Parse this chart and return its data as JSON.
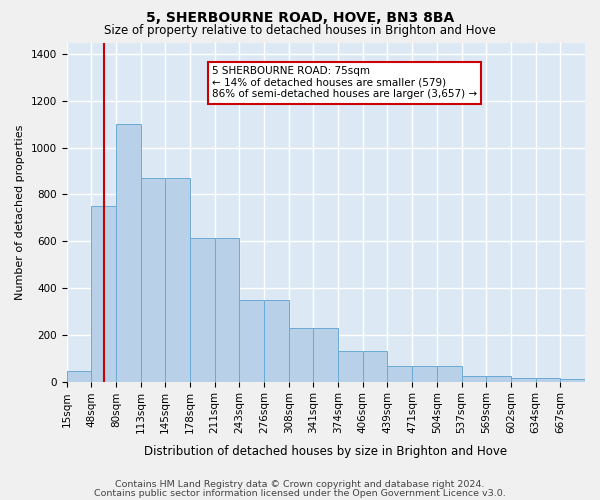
{
  "title": "5, SHERBOURNE ROAD, HOVE, BN3 8BA",
  "subtitle": "Size of property relative to detached houses in Brighton and Hove",
  "xlabel": "Distribution of detached houses by size in Brighton and Hove",
  "ylabel": "Number of detached properties",
  "footnote1": "Contains HM Land Registry data © Crown copyright and database right 2024.",
  "footnote2": "Contains public sector information licensed under the Open Government Licence v3.0.",
  "bar_labels": [
    "15sqm",
    "48sqm",
    "80sqm",
    "113sqm",
    "145sqm",
    "178sqm",
    "211sqm",
    "243sqm",
    "276sqm",
    "308sqm",
    "341sqm",
    "374sqm",
    "406sqm",
    "439sqm",
    "471sqm",
    "504sqm",
    "537sqm",
    "569sqm",
    "602sqm",
    "634sqm",
    "667sqm"
  ],
  "bar_values": [
    47,
    750,
    1100,
    870,
    870,
    615,
    615,
    348,
    348,
    228,
    228,
    132,
    132,
    65,
    65,
    65,
    25,
    25,
    15,
    15,
    10
  ],
  "bar_color": "#b8d0e8",
  "bar_edge_color": "#6aaad4",
  "annotation_text_line1": "5 SHERBOURNE ROAD: 75sqm",
  "annotation_text_line2": "← 14% of detached houses are smaller (579)",
  "annotation_text_line3": "86% of semi-detached houses are larger (3,657) →",
  "annotation_box_color": "#ffffff",
  "annotation_box_edge_color": "#cc0000",
  "vline_color": "#cc0000",
  "vline_index": 1.5,
  "ylim": [
    0,
    1450
  ],
  "yticks": [
    0,
    200,
    400,
    600,
    800,
    1000,
    1200,
    1400
  ],
  "background_color": "#dce9f5",
  "grid_color": "#ffffff",
  "figure_facecolor": "#f0f0f0",
  "title_fontsize": 10,
  "subtitle_fontsize": 8.5,
  "xlabel_fontsize": 8.5,
  "ylabel_fontsize": 8,
  "tick_fontsize": 7.5,
  "footnote_fontsize": 6.8
}
